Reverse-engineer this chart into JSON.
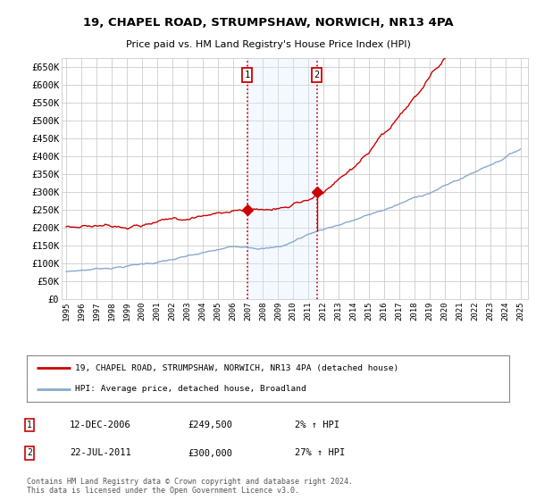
{
  "title_line1": "19, CHAPEL ROAD, STRUMPSHAW, NORWICH, NR13 4PA",
  "title_line2": "Price paid vs. HM Land Registry's House Price Index (HPI)",
  "ylabel_ticks": [
    "£0",
    "£50K",
    "£100K",
    "£150K",
    "£200K",
    "£250K",
    "£300K",
    "£350K",
    "£400K",
    "£450K",
    "£500K",
    "£550K",
    "£600K",
    "£650K"
  ],
  "ylim": [
    0,
    675000
  ],
  "xlim_start": 1994.7,
  "xlim_end": 2025.5,
  "red_line_color": "#cc0000",
  "blue_line_color": "#88aacc",
  "transaction1": {
    "date_num": 2006.95,
    "price": 249500,
    "label": "1"
  },
  "transaction2": {
    "date_num": 2011.55,
    "price": 300000,
    "label": "2"
  },
  "shade_color": "#ddeeff",
  "dashed_color": "#cc0000",
  "legend_red_label": "19, CHAPEL ROAD, STRUMPSHAW, NORWICH, NR13 4PA (detached house)",
  "legend_blue_label": "HPI: Average price, detached house, Broadland",
  "table_rows": [
    {
      "num": "1",
      "date": "12-DEC-2006",
      "price": "£249,500",
      "change": "2% ↑ HPI"
    },
    {
      "num": "2",
      "date": "22-JUL-2011",
      "price": "£300,000",
      "change": "27% ↑ HPI"
    }
  ],
  "footer": "Contains HM Land Registry data © Crown copyright and database right 2024.\nThis data is licensed under the Open Government Licence v3.0.",
  "background_color": "#ffffff",
  "grid_color": "#cccccc"
}
